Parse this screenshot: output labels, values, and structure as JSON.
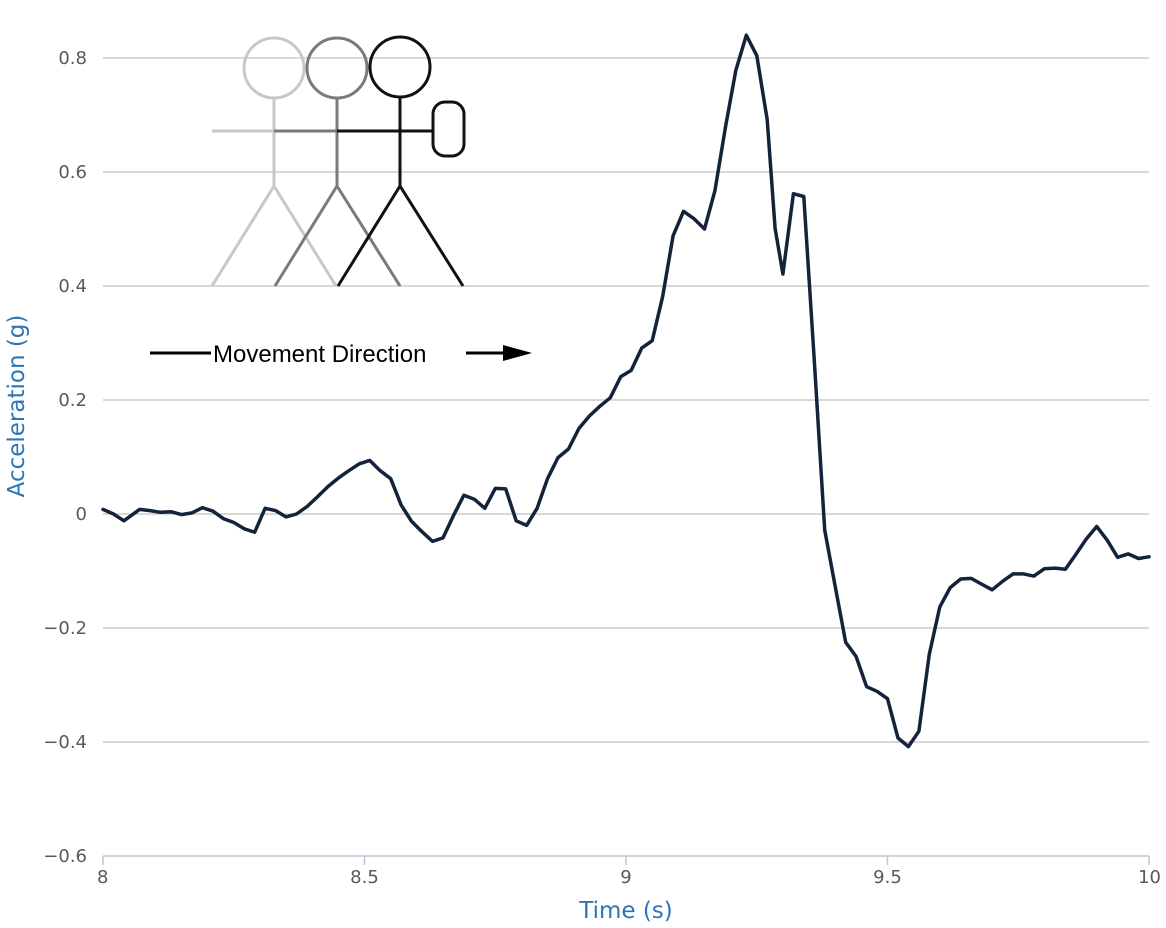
{
  "chart_data": {
    "type": "line",
    "xlabel": "Time (s)",
    "ylabel": "Acceleration (g)",
    "xlim": [
      8,
      10
    ],
    "ylim": [
      -0.6,
      0.85
    ],
    "x_ticks": [
      8,
      8.5,
      9,
      9.5,
      10
    ],
    "x_tick_labels": [
      "8",
      "8.5",
      "9",
      "9.5",
      "10"
    ],
    "y_ticks": [
      -0.6,
      -0.4,
      -0.2,
      0,
      0.2,
      0.4,
      0.6,
      0.8
    ],
    "y_tick_labels": [
      "−0.6",
      "−0.4",
      "−0.2",
      "0",
      "0.2",
      "0.4",
      "0.6",
      "0.8"
    ],
    "grid": "horizontal",
    "annotation": "Movement Direction",
    "series": [
      {
        "color": "#13243a",
        "x": [
          8.0,
          8.02,
          8.04,
          8.055,
          8.07,
          8.09,
          8.11,
          8.13,
          8.15,
          8.17,
          8.19,
          8.21,
          8.23,
          8.25,
          8.27,
          8.29,
          8.31,
          8.33,
          8.35,
          8.37,
          8.39,
          8.41,
          8.43,
          8.45,
          8.47,
          8.49,
          8.51,
          8.53,
          8.55,
          8.57,
          8.59,
          8.61,
          8.63,
          8.65,
          8.67,
          8.69,
          8.71,
          8.73,
          8.75,
          8.77,
          8.79,
          8.81,
          8.83,
          8.85,
          8.87,
          8.89,
          8.91,
          8.93,
          8.95,
          8.97,
          8.99,
          9.01,
          9.03,
          9.05,
          9.07,
          9.09,
          9.11,
          9.13,
          9.15,
          9.17,
          9.19,
          9.21,
          9.23,
          9.25,
          9.27,
          9.285,
          9.3,
          9.32,
          9.34,
          9.36,
          9.38,
          9.4,
          9.42,
          9.44,
          9.46,
          9.48,
          9.5,
          9.52,
          9.54,
          9.56,
          9.58,
          9.6,
          9.62,
          9.64,
          9.66,
          9.68,
          9.7,
          9.72,
          9.74,
          9.76,
          9.78,
          9.8,
          9.82,
          9.84,
          9.86,
          9.88,
          9.9,
          9.92,
          9.94,
          9.96,
          9.98,
          10.0
        ],
        "y": [
          0.008,
          0.0,
          -0.012,
          -0.002,
          0.008,
          0.006,
          0.003,
          0.004,
          -0.001,
          0.002,
          0.011,
          0.005,
          -0.008,
          -0.015,
          -0.026,
          -0.032,
          0.01,
          0.006,
          -0.005,
          0.0,
          0.013,
          0.03,
          0.048,
          0.063,
          0.076,
          0.088,
          0.094,
          0.076,
          0.062,
          0.016,
          -0.013,
          -0.031,
          -0.048,
          -0.042,
          -0.003,
          0.033,
          0.026,
          0.01,
          0.045,
          0.044,
          -0.012,
          -0.02,
          0.01,
          0.062,
          0.099,
          0.114,
          0.15,
          0.172,
          0.189,
          0.204,
          0.241,
          0.252,
          0.291,
          0.304,
          0.381,
          0.488,
          0.531,
          0.518,
          0.5,
          0.567,
          0.678,
          0.778,
          0.84,
          0.804,
          0.692,
          0.501,
          0.421,
          0.562,
          0.557,
          0.269,
          -0.028,
          -0.127,
          -0.225,
          -0.25,
          -0.303,
          -0.311,
          -0.324,
          -0.393,
          -0.408,
          -0.381,
          -0.246,
          -0.163,
          -0.129,
          -0.114,
          -0.113,
          -0.123,
          -0.133,
          -0.118,
          -0.105,
          -0.105,
          -0.109,
          -0.096,
          -0.095,
          -0.097,
          -0.071,
          -0.044,
          -0.022,
          -0.046,
          -0.076,
          -0.07,
          -0.078,
          -0.075
        ]
      }
    ]
  },
  "colors": {
    "line": "#13243a",
    "grid": "#c0c0c0",
    "axis": "#bcc8d6",
    "tick_label": "#595959",
    "axis_title": "#2e75b6",
    "figure_light": "#c8c8c8",
    "figure_mid": "#7a7a7a",
    "figure_dark": "#111111"
  }
}
